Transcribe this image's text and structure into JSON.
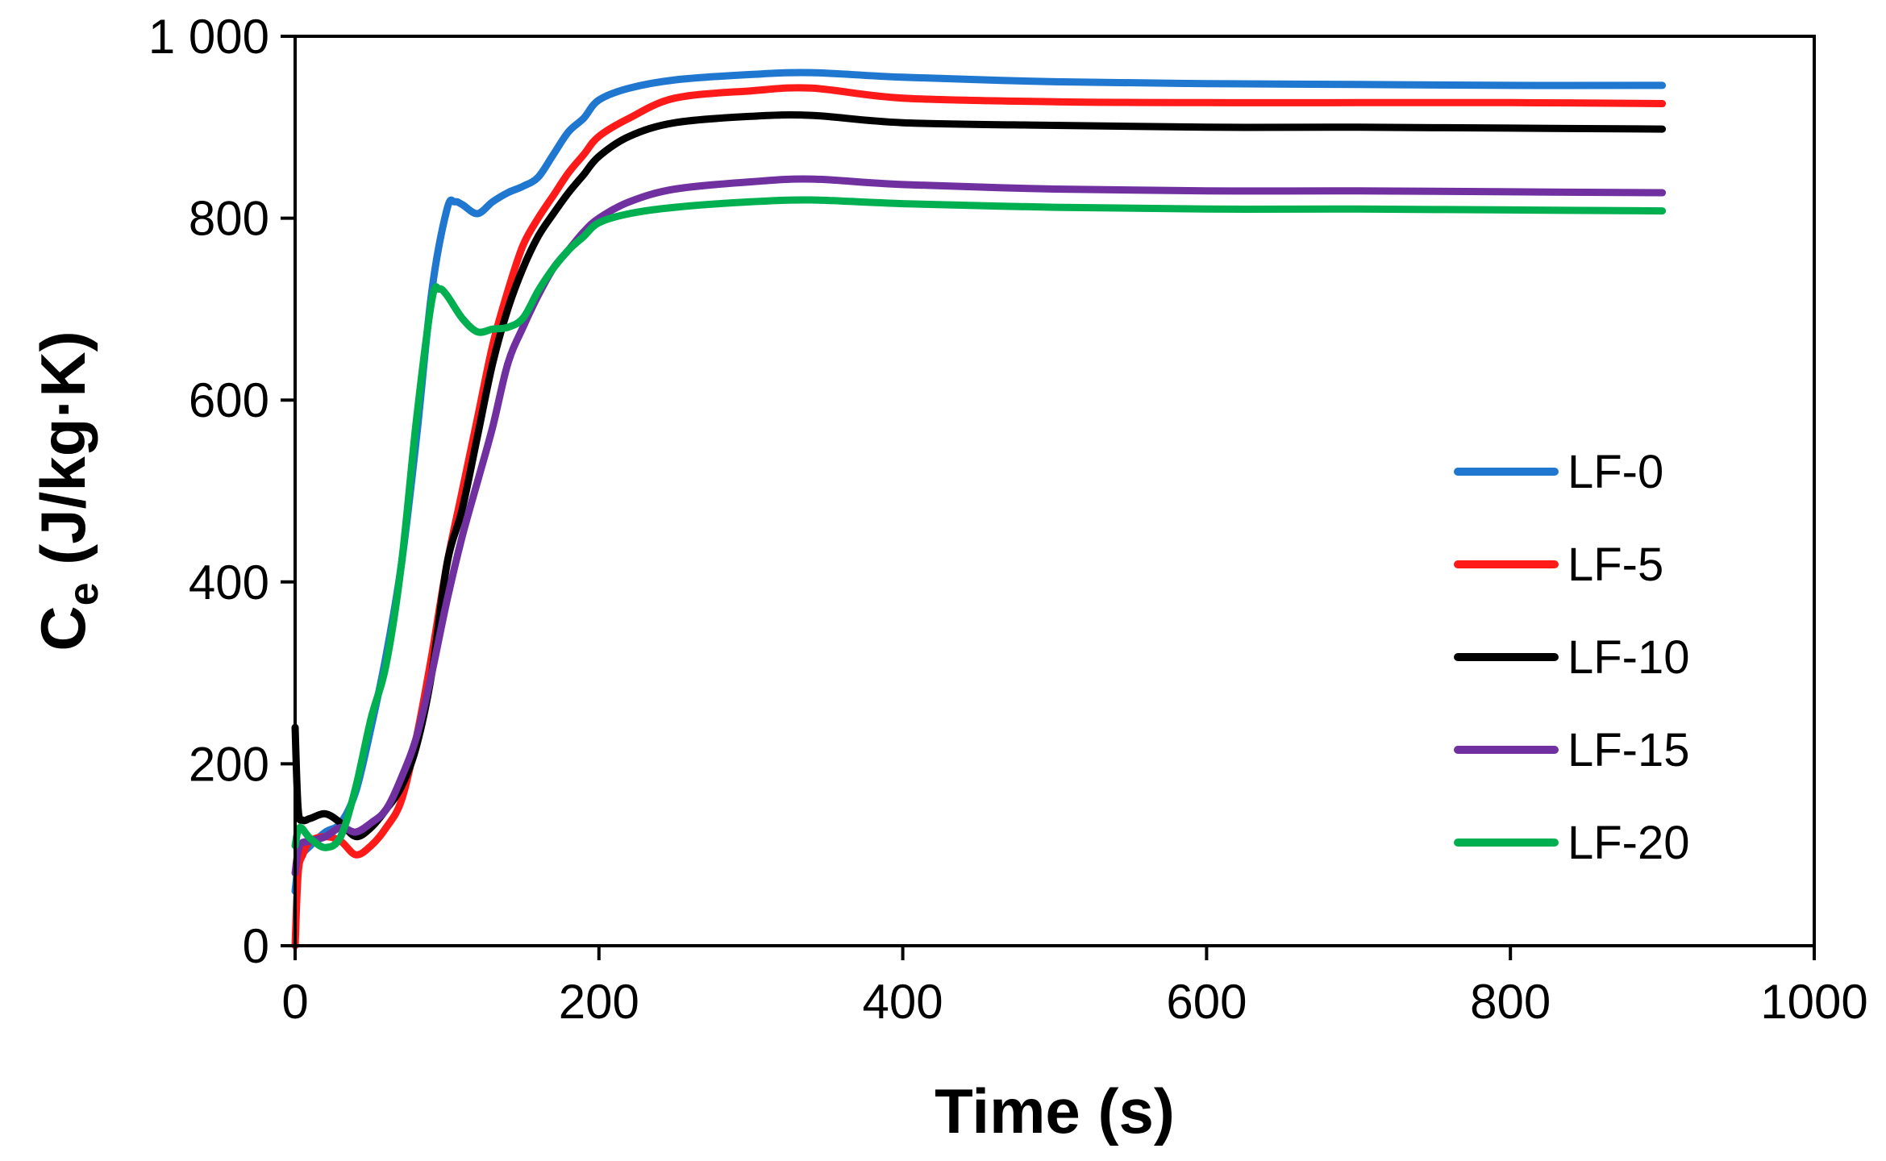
{
  "chart_data": {
    "type": "line",
    "title": "",
    "xlabel": "Time (s)",
    "ylabel_main": "C",
    "ylabel_sub": "e",
    "ylabel_unit": " (J/kg·K)",
    "xlim": [
      0,
      1000
    ],
    "ylim": [
      0,
      1000
    ],
    "xticks": [
      0,
      200,
      400,
      600,
      800,
      1000
    ],
    "xtick_labels": [
      "0",
      "200",
      "400",
      "600",
      "800",
      "1000"
    ],
    "yticks": [
      0,
      200,
      400,
      600,
      800,
      1000
    ],
    "ytick_labels": [
      "0",
      "200",
      "400",
      "600",
      "800",
      "1 000"
    ],
    "grid": false,
    "legend_position": "center-right",
    "series": [
      {
        "name": "LF-0",
        "color": "#1f77d0",
        "x": [
          0,
          3,
          10,
          20,
          30,
          40,
          50,
          60,
          70,
          80,
          90,
          100,
          105,
          110,
          120,
          130,
          140,
          150,
          160,
          170,
          180,
          190,
          200,
          220,
          250,
          300,
          340,
          400,
          500,
          600,
          700,
          800,
          900
        ],
        "y": [
          60,
          95,
          110,
          125,
          135,
          170,
          240,
          320,
          420,
          560,
          720,
          810,
          818,
          815,
          805,
          818,
          828,
          835,
          845,
          870,
          895,
          910,
          930,
          943,
          952,
          958,
          960,
          955,
          950,
          948,
          947,
          946,
          946
        ]
      },
      {
        "name": "LF-5",
        "color": "#ff1a1a",
        "x": [
          0,
          2,
          5,
          10,
          20,
          30,
          40,
          50,
          60,
          70,
          80,
          90,
          100,
          110,
          120,
          130,
          140,
          150,
          160,
          170,
          180,
          190,
          200,
          220,
          250,
          300,
          340,
          400,
          500,
          600,
          700,
          800,
          900
        ],
        "y": [
          0,
          80,
          100,
          115,
          120,
          115,
          100,
          110,
          130,
          160,
          230,
          320,
          420,
          500,
          580,
          660,
          720,
          770,
          800,
          825,
          850,
          870,
          890,
          910,
          932,
          940,
          943,
          932,
          928,
          927,
          927,
          927,
          926
        ]
      },
      {
        "name": "LF-10",
        "color": "#000000",
        "x": [
          0,
          2,
          5,
          10,
          20,
          30,
          40,
          50,
          60,
          70,
          80,
          90,
          100,
          110,
          120,
          130,
          140,
          150,
          160,
          170,
          180,
          190,
          200,
          220,
          250,
          300,
          340,
          400,
          500,
          600,
          700,
          800,
          900
        ],
        "y": [
          240,
          150,
          138,
          140,
          145,
          135,
          120,
          130,
          150,
          175,
          220,
          300,
          420,
          480,
          560,
          640,
          700,
          745,
          780,
          805,
          828,
          848,
          868,
          890,
          905,
          912,
          913,
          905,
          902,
          900,
          900,
          899,
          898
        ]
      },
      {
        "name": "LF-15",
        "color": "#7030a0",
        "x": [
          0,
          3,
          10,
          20,
          30,
          40,
          50,
          60,
          70,
          80,
          90,
          100,
          110,
          120,
          130,
          140,
          150,
          160,
          170,
          180,
          190,
          200,
          220,
          250,
          300,
          340,
          400,
          500,
          600,
          700,
          800,
          900
        ],
        "y": [
          80,
          110,
          115,
          120,
          130,
          125,
          135,
          150,
          185,
          230,
          300,
          380,
          450,
          510,
          570,
          640,
          680,
          715,
          745,
          765,
          785,
          800,
          818,
          832,
          840,
          843,
          837,
          832,
          830,
          830,
          829,
          828
        ]
      },
      {
        "name": "LF-20",
        "color": "#00b050",
        "x": [
          0,
          3,
          10,
          20,
          30,
          40,
          50,
          60,
          70,
          80,
          90,
          95,
          100,
          110,
          120,
          130,
          140,
          150,
          160,
          170,
          180,
          190,
          200,
          220,
          250,
          300,
          340,
          400,
          500,
          600,
          700,
          800,
          900
        ],
        "y": [
          110,
          130,
          118,
          108,
          120,
          175,
          250,
          310,
          420,
          580,
          710,
          722,
          715,
          690,
          675,
          678,
          680,
          690,
          720,
          745,
          765,
          780,
          795,
          805,
          812,
          818,
          820,
          816,
          812,
          810,
          810,
          809,
          808
        ]
      }
    ]
  }
}
